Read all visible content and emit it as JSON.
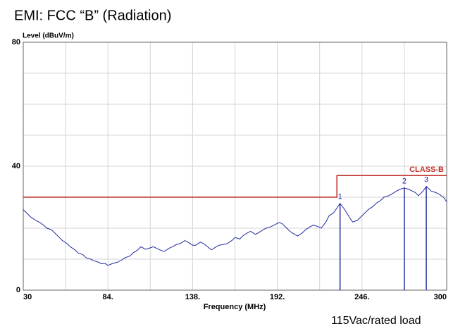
{
  "chart_data": {
    "type": "line",
    "title": "EMI: FCC “B” (Radiation)",
    "y_label": "Level (dBuV/m)",
    "x_label": "Frequency (MHz)",
    "footnote": "115Vac/rated load",
    "xlim": [
      30,
      300
    ],
    "ylim": [
      0,
      80
    ],
    "xticks": [
      30,
      {
        "value": 84,
        "label": "84."
      },
      {
        "value": 138,
        "label": "138."
      },
      {
        "value": 192,
        "label": "192."
      },
      {
        "value": 246,
        "label": "246."
      },
      300
    ],
    "minor_xticks": [
      57,
      111,
      165,
      219,
      273
    ],
    "yticks": [
      0,
      40,
      80
    ],
    "minor_yticks": [
      10,
      20,
      30,
      50,
      60,
      70
    ],
    "grid": true,
    "series": [
      {
        "color": "#1f2a9e",
        "x": [
          30,
          32,
          35,
          38,
          40,
          43,
          45,
          48,
          50,
          53,
          55,
          58,
          60,
          63,
          65,
          68,
          70,
          73,
          75,
          78,
          80,
          82,
          84,
          87,
          90,
          93,
          95,
          98,
          100,
          103,
          105,
          108,
          110,
          113,
          115,
          118,
          120,
          123,
          125,
          128,
          130,
          133,
          135,
          138,
          140,
          143,
          145,
          148,
          150,
          153,
          155,
          158,
          160,
          163,
          165,
          168,
          170,
          173,
          175,
          178,
          180,
          183,
          185,
          188,
          190,
          193,
          195,
          198,
          200,
          203,
          205,
          208,
          210,
          213,
          215,
          218,
          220,
          223,
          225,
          228,
          230,
          232,
          235,
          238,
          240,
          243,
          245,
          248,
          250,
          253,
          255,
          258,
          260,
          263,
          265,
          268,
          270,
          273,
          276,
          278,
          280,
          282,
          285,
          287,
          290,
          293,
          295,
          298,
          300
        ],
        "values": [
          26,
          25,
          23.5,
          22.5,
          22,
          21,
          20,
          19.5,
          18.5,
          17,
          16,
          15,
          14,
          13,
          12,
          11.5,
          10.5,
          10,
          9.5,
          9,
          8.5,
          8.7,
          8,
          8.6,
          9,
          9.8,
          10.5,
          11,
          12,
          13,
          14,
          13.2,
          13.5,
          14,
          13.5,
          12.8,
          12.5,
          13.5,
          14,
          14.8,
          15,
          16,
          15.5,
          14.5,
          14.5,
          15.5,
          15,
          13.8,
          13,
          14,
          14.5,
          14.8,
          15,
          16,
          17,
          16.5,
          17.5,
          18.5,
          19,
          18,
          18.5,
          19.5,
          20,
          20.5,
          21,
          21.8,
          21.5,
          20,
          19,
          18,
          17.5,
          18.5,
          19.5,
          20.5,
          21,
          20.5,
          20,
          22,
          24,
          25,
          26.5,
          28,
          26,
          23.5,
          22,
          22.5,
          23.5,
          25,
          26,
          27,
          28,
          29,
          30,
          30.5,
          31,
          32,
          32.5,
          33,
          32.5,
          32,
          31.5,
          30.5,
          32,
          33.5,
          32,
          31.5,
          31,
          30,
          28.5
        ]
      }
    ],
    "limit": {
      "name": "CLASS-B",
      "color": "#c0302b",
      "x": [
        30,
        230,
        230,
        300
      ],
      "values": [
        30,
        30,
        37,
        37
      ]
    },
    "markers": {
      "color": "#1f2a9e",
      "labels": [
        "1",
        "2",
        "3"
      ],
      "x": [
        232,
        273,
        287
      ],
      "values": [
        28,
        33,
        33.5
      ]
    }
  }
}
